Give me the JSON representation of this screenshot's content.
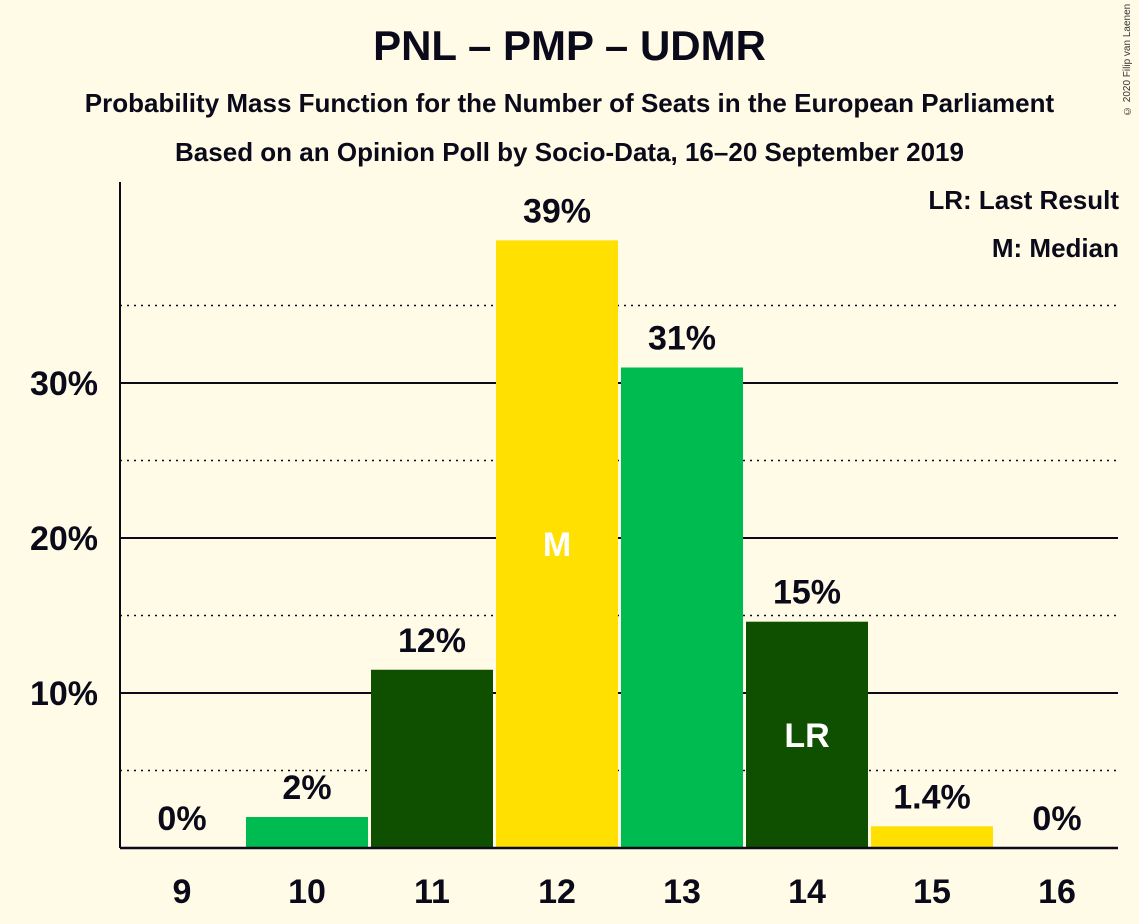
{
  "header": {
    "title": "PNL – PMP – UDMR",
    "subtitle1": "Probability Mass Function for the Number of Seats in the European Parliament",
    "subtitle2": "Based on an Opinion Poll by Socio-Data, 16–20 September 2019",
    "copyright": "© 2020 Filip van Laenen"
  },
  "legend": {
    "lr": "LR: Last Result",
    "m": "M: Median"
  },
  "colors": {
    "background": "#FFFBE6",
    "yellow": "#FFE000",
    "green": "#00BB50",
    "dark_green": "#0F4F00",
    "text": "#0A0A1A"
  },
  "chart_data": {
    "type": "bar",
    "title": "PNL – PMP – UDMR",
    "categories": [
      "9",
      "10",
      "11",
      "12",
      "13",
      "14",
      "15",
      "16"
    ],
    "values": [
      0,
      2,
      11.5,
      39.2,
      31,
      14.6,
      1.4,
      0
    ],
    "data_labels": [
      "0%",
      "2%",
      "12%",
      "39%",
      "31%",
      "15%",
      "1.4%",
      "0%"
    ],
    "bar_colors": [
      "#FFE000",
      "#00BB50",
      "#0F4F00",
      "#FFE000",
      "#00BB50",
      "#0F4F00",
      "#FFE000",
      "#00BB50"
    ],
    "markers": {
      "12": "M",
      "14": "LR"
    },
    "yticks": [
      10,
      20,
      30
    ],
    "ytick_labels": [
      "10%",
      "20%",
      "30%"
    ],
    "ylim": [
      0,
      43
    ],
    "grid": "major solid at 10% steps, minor dotted at 5% steps",
    "legend_placement": "top-right"
  }
}
